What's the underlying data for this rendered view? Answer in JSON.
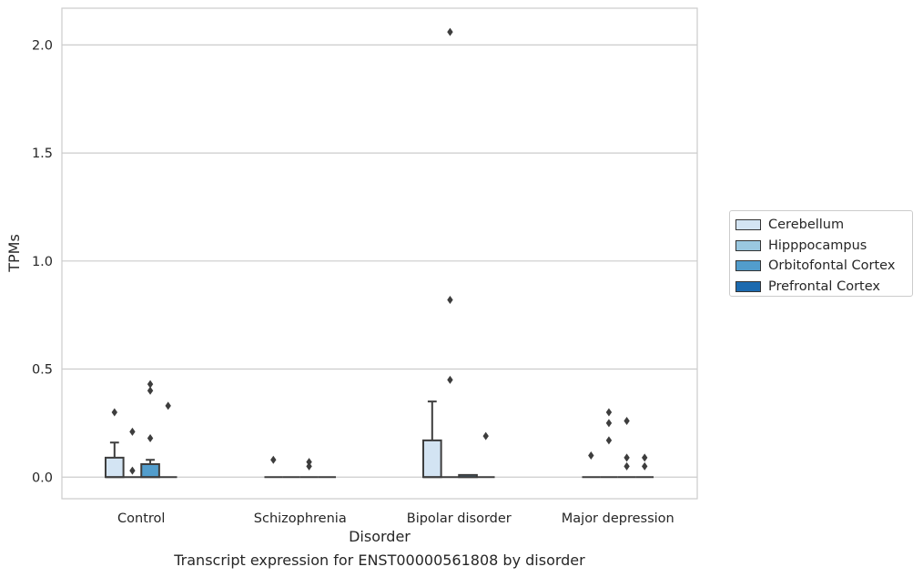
{
  "caption": "Transcript expression for ENST00000561808 by disorder",
  "chart_data": {
    "type": "box",
    "xlabel": "Disorder",
    "ylabel": "TPMs",
    "categories": [
      "Control",
      "Schizophrenia",
      "Bipolar disorder",
      "Major depression"
    ],
    "ylim": [
      -0.1,
      2.17
    ],
    "yticks": [
      0.0,
      0.5,
      1.0,
      1.5,
      2.0
    ],
    "ytick_labels": [
      "0.0",
      "0.5",
      "1.0",
      "1.5",
      "2.0"
    ],
    "grid": true,
    "legend_position": "right",
    "series": [
      {
        "name": "Cerebellum",
        "color": "#d3e4f3",
        "boxes": [
          {
            "q1": 0.0,
            "median": 0.0,
            "q3": 0.09,
            "whisker_low": 0.0,
            "whisker_high": 0.16,
            "outliers": [
              0.3
            ]
          },
          {
            "q1": 0.0,
            "median": 0.0,
            "q3": 0.0,
            "whisker_low": 0.0,
            "whisker_high": 0.0,
            "outliers": [
              0.08
            ]
          },
          {
            "q1": 0.0,
            "median": 0.0,
            "q3": 0.17,
            "whisker_low": 0.0,
            "whisker_high": 0.35,
            "outliers": []
          },
          {
            "q1": 0.0,
            "median": 0.0,
            "q3": 0.0,
            "whisker_low": 0.0,
            "whisker_high": 0.0,
            "outliers": [
              0.1
            ]
          }
        ]
      },
      {
        "name": "Hipppocampus",
        "color": "#9ac8e0",
        "boxes": [
          {
            "q1": 0.0,
            "median": 0.0,
            "q3": 0.0,
            "whisker_low": 0.0,
            "whisker_high": 0.0,
            "outliers": [
              0.21,
              0.03
            ]
          },
          {
            "q1": 0.0,
            "median": 0.0,
            "q3": 0.0,
            "whisker_low": 0.0,
            "whisker_high": 0.0,
            "outliers": []
          },
          {
            "q1": 0.0,
            "median": 0.0,
            "q3": 0.0,
            "whisker_low": 0.0,
            "whisker_high": 0.0,
            "outliers": [
              2.06,
              0.82,
              0.45
            ]
          },
          {
            "q1": 0.0,
            "median": 0.0,
            "q3": 0.0,
            "whisker_low": 0.0,
            "whisker_high": 0.0,
            "outliers": [
              0.3,
              0.25,
              0.17
            ]
          }
        ]
      },
      {
        "name": "Orbitofontal Cortex",
        "color": "#529dcc",
        "boxes": [
          {
            "q1": 0.0,
            "median": 0.0,
            "q3": 0.06,
            "whisker_low": 0.0,
            "whisker_high": 0.08,
            "outliers": [
              0.43,
              0.4,
              0.18
            ]
          },
          {
            "q1": 0.0,
            "median": 0.0,
            "q3": 0.0,
            "whisker_low": 0.0,
            "whisker_high": 0.0,
            "outliers": [
              0.07,
              0.05
            ]
          },
          {
            "q1": 0.0,
            "median": 0.0,
            "q3": 0.01,
            "whisker_low": 0.0,
            "whisker_high": 0.01,
            "outliers": []
          },
          {
            "q1": 0.0,
            "median": 0.0,
            "q3": 0.0,
            "whisker_low": 0.0,
            "whisker_high": 0.0,
            "outliers": [
              0.26,
              0.09,
              0.05
            ]
          }
        ]
      },
      {
        "name": "Prefrontal Cortex",
        "color": "#1c6aaf",
        "boxes": [
          {
            "q1": 0.0,
            "median": 0.0,
            "q3": 0.0,
            "whisker_low": 0.0,
            "whisker_high": 0.0,
            "outliers": [
              0.33
            ]
          },
          {
            "q1": 0.0,
            "median": 0.0,
            "q3": 0.0,
            "whisker_low": 0.0,
            "whisker_high": 0.0,
            "outliers": []
          },
          {
            "q1": 0.0,
            "median": 0.0,
            "q3": 0.0,
            "whisker_low": 0.0,
            "whisker_high": 0.0,
            "outliers": [
              0.19
            ]
          },
          {
            "q1": 0.0,
            "median": 0.0,
            "q3": 0.0,
            "whisker_low": 0.0,
            "whisker_high": 0.0,
            "outliers": [
              0.09,
              0.05
            ]
          }
        ]
      }
    ]
  }
}
